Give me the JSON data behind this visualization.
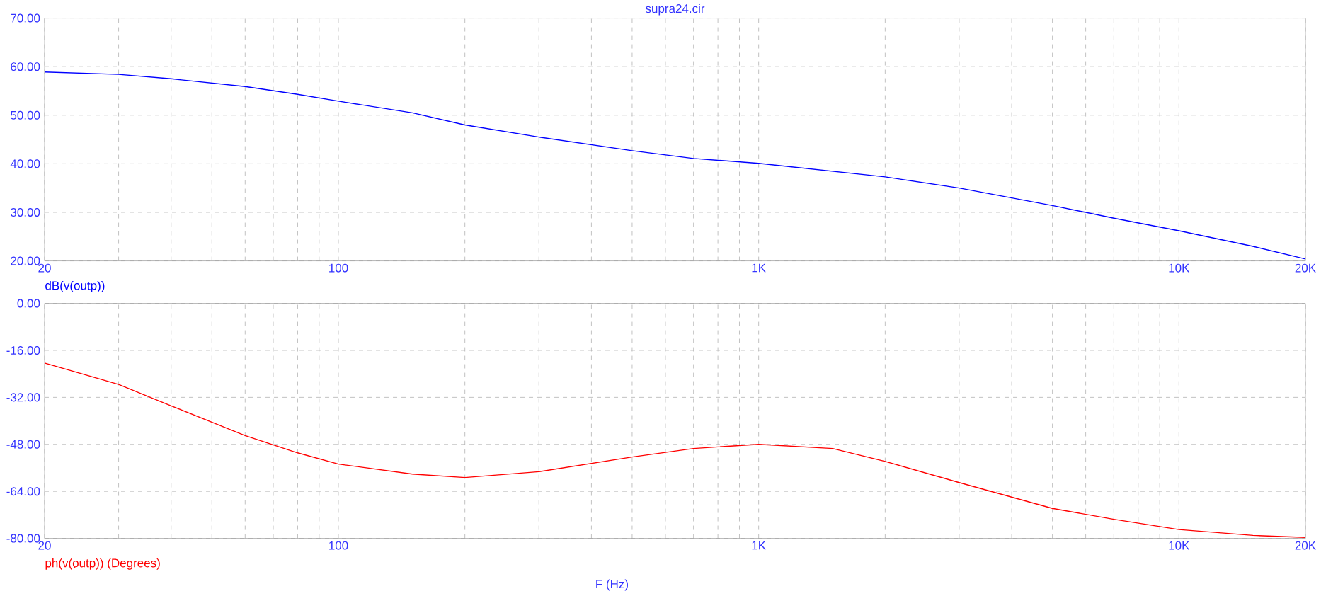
{
  "chart_data": [
    {
      "type": "line",
      "title": "supra24.cir",
      "log": "x",
      "grid": true,
      "xlim": [
        20,
        20000
      ],
      "xticks": [
        20,
        {
          "value": 30,
          "label": null
        },
        {
          "value": 40,
          "label": null
        },
        {
          "value": 50,
          "label": null
        },
        {
          "value": 60,
          "label": null
        },
        {
          "value": 70,
          "label": null
        },
        {
          "value": 80,
          "label": null
        },
        {
          "value": 90,
          "label": null
        },
        100,
        {
          "value": 200,
          "label": null
        },
        {
          "value": 300,
          "label": null
        },
        {
          "value": 400,
          "label": null
        },
        {
          "value": 500,
          "label": null
        },
        {
          "value": 600,
          "label": null
        },
        {
          "value": 700,
          "label": null
        },
        {
          "value": 800,
          "label": null
        },
        {
          "value": 900,
          "label": null
        },
        {
          "value": 1000,
          "label": "1K"
        },
        {
          "value": 2000,
          "label": null
        },
        {
          "value": 3000,
          "label": null
        },
        {
          "value": 4000,
          "label": null
        },
        {
          "value": 5000,
          "label": null
        },
        {
          "value": 6000,
          "label": null
        },
        {
          "value": 7000,
          "label": null
        },
        {
          "value": 8000,
          "label": null
        },
        {
          "value": 9000,
          "label": null
        },
        {
          "value": 10000,
          "label": "10K"
        },
        {
          "value": 20000,
          "label": "20K"
        }
      ],
      "ylim": [
        20,
        70
      ],
      "yticks": [
        {
          "value": 20,
          "label": "20.00"
        },
        {
          "value": 30,
          "label": "30.00"
        },
        {
          "value": 40,
          "label": "40.00"
        },
        {
          "value": 50,
          "label": "50.00"
        },
        {
          "value": 60,
          "label": "60.00"
        },
        {
          "value": 70,
          "label": "70.00"
        }
      ],
      "x": [
        20,
        30,
        40,
        60,
        80,
        100,
        150,
        200,
        300,
        500,
        700,
        1000,
        2000,
        3000,
        5000,
        7000,
        10000,
        15000,
        20000
      ],
      "series": [
        {
          "name": "dB(v(outp))",
          "color": "#0000ff",
          "values": [
            58.9,
            58.4,
            57.5,
            55.9,
            54.3,
            52.9,
            50.5,
            48,
            45.5,
            42.7,
            41.1,
            40.1,
            37.3,
            35,
            31.4,
            28.8,
            26.2,
            23,
            20.4
          ]
        }
      ]
    },
    {
      "type": "line",
      "xlabel": "F (Hz)",
      "log": "x",
      "grid": true,
      "xlim": [
        20,
        20000
      ],
      "xticks": [
        20,
        {
          "value": 30,
          "label": null
        },
        {
          "value": 40,
          "label": null
        },
        {
          "value": 50,
          "label": null
        },
        {
          "value": 60,
          "label": null
        },
        {
          "value": 70,
          "label": null
        },
        {
          "value": 80,
          "label": null
        },
        {
          "value": 90,
          "label": null
        },
        100,
        {
          "value": 200,
          "label": null
        },
        {
          "value": 300,
          "label": null
        },
        {
          "value": 400,
          "label": null
        },
        {
          "value": 500,
          "label": null
        },
        {
          "value": 600,
          "label": null
        },
        {
          "value": 700,
          "label": null
        },
        {
          "value": 800,
          "label": null
        },
        {
          "value": 900,
          "label": null
        },
        {
          "value": 1000,
          "label": "1K"
        },
        {
          "value": 2000,
          "label": null
        },
        {
          "value": 3000,
          "label": null
        },
        {
          "value": 4000,
          "label": null
        },
        {
          "value": 5000,
          "label": null
        },
        {
          "value": 6000,
          "label": null
        },
        {
          "value": 7000,
          "label": null
        },
        {
          "value": 8000,
          "label": null
        },
        {
          "value": 9000,
          "label": null
        },
        {
          "value": 10000,
          "label": "10K"
        },
        {
          "value": 20000,
          "label": "20K"
        }
      ],
      "ylim": [
        -80,
        0
      ],
      "yticks": [
        {
          "value": -80,
          "label": "-80.00"
        },
        {
          "value": -64,
          "label": "-64.00"
        },
        {
          "value": -48,
          "label": "-48.00"
        },
        {
          "value": -32,
          "label": "-32.00"
        },
        {
          "value": -16,
          "label": "-16.00"
        },
        {
          "value": 0,
          "label": "0.00"
        }
      ],
      "x": [
        20,
        30,
        40,
        60,
        80,
        100,
        150,
        200,
        300,
        500,
        700,
        1000,
        1500,
        2000,
        3000,
        5000,
        7000,
        10000,
        15000,
        20000
      ],
      "series": [
        {
          "name": "ph(v(outp)) (Degrees)",
          "color": "#ff0000",
          "values": [
            -20.3,
            -27.6,
            -34.9,
            -45,
            -50.9,
            -54.7,
            -58.1,
            -59.3,
            -57.3,
            -52.3,
            -49.4,
            -48,
            -49.4,
            -53.8,
            -61,
            -69.8,
            -73.5,
            -77,
            -79,
            -79.7
          ]
        }
      ]
    }
  ]
}
